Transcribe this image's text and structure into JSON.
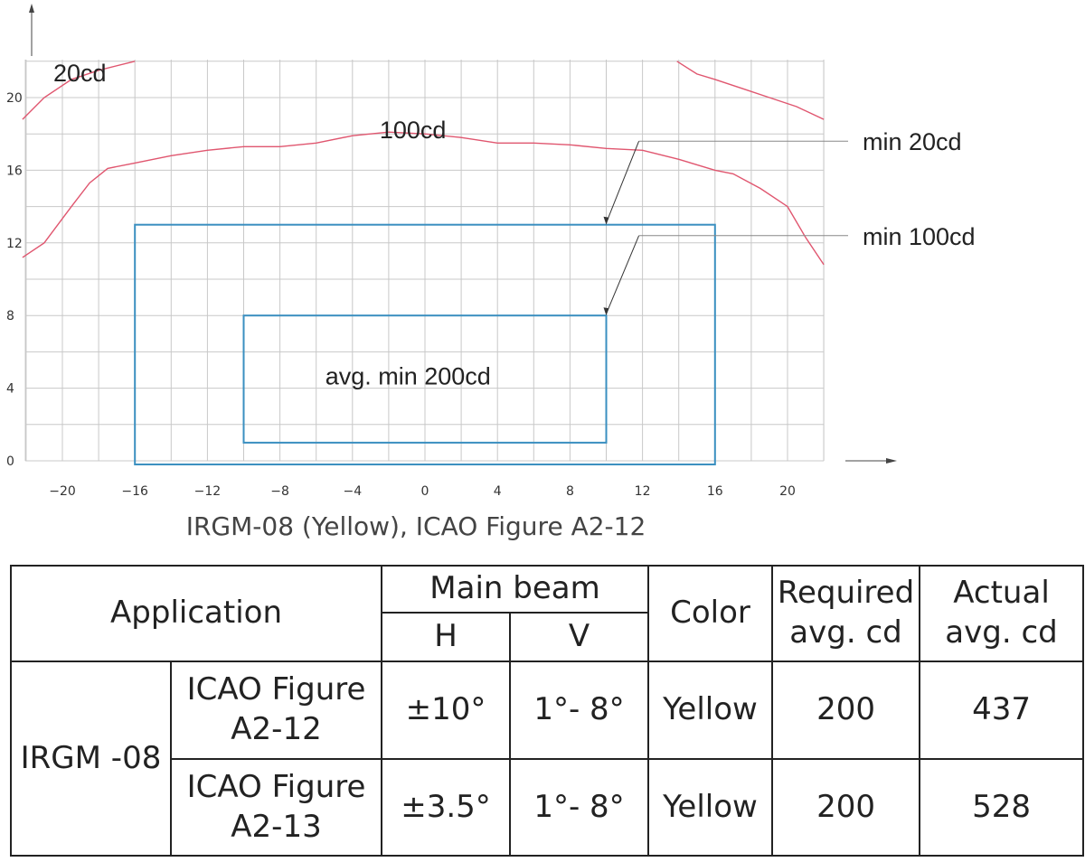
{
  "chart_data": {
    "type": "line",
    "x_ticks": [
      -20,
      -16,
      -12,
      -8,
      -4,
      0,
      4,
      8,
      12,
      16,
      20
    ],
    "y_ticks": [
      0,
      4,
      8,
      12,
      16,
      20
    ],
    "xlim": [
      -22.2,
      22
    ],
    "ylim": [
      0,
      22
    ],
    "grid": true,
    "curves": [
      {
        "label": "20cd",
        "color": "#e0566f",
        "segments": [
          [
            [
              -22.2,
              18.8
            ],
            [
              -21,
              20
            ],
            [
              -19.5,
              21
            ],
            [
              -18,
              21.5
            ],
            [
              -16,
              22
            ]
          ],
          [
            [
              13.9,
              22
            ],
            [
              15,
              21.3
            ],
            [
              16,
              21
            ],
            [
              17.5,
              20.5
            ],
            [
              19,
              20
            ],
            [
              20.5,
              19.5
            ],
            [
              22,
              18.8
            ]
          ]
        ]
      },
      {
        "label": "100cd",
        "color": "#e0566f",
        "segments": [
          [
            [
              -22.2,
              11.2
            ],
            [
              -21,
              12
            ],
            [
              -19.5,
              14
            ],
            [
              -18.5,
              15.3
            ],
            [
              -17.5,
              16.1
            ],
            [
              -16,
              16.4
            ],
            [
              -14,
              16.8
            ],
            [
              -12,
              17.1
            ],
            [
              -10,
              17.3
            ],
            [
              -8,
              17.3
            ],
            [
              -6,
              17.5
            ],
            [
              -4,
              17.9
            ],
            [
              -2,
              18.1
            ],
            [
              0,
              18
            ],
            [
              2,
              17.8
            ],
            [
              4,
              17.5
            ],
            [
              6,
              17.5
            ],
            [
              8,
              17.4
            ],
            [
              10,
              17.2
            ],
            [
              12,
              17.1
            ],
            [
              14,
              16.6
            ],
            [
              16,
              16
            ],
            [
              17,
              15.8
            ],
            [
              18.5,
              15
            ],
            [
              20,
              14
            ],
            [
              21,
              12.3
            ],
            [
              22,
              10.8
            ]
          ]
        ]
      }
    ],
    "rectangles": [
      {
        "x0": -16,
        "x1": 16,
        "y0": -0.2,
        "y1": 13,
        "color": "#3a8fc0"
      },
      {
        "x0": -10,
        "x1": 10,
        "y0": 1,
        "y1": 8,
        "color": "#3a8fc0"
      }
    ],
    "annotations": [
      {
        "text": "20cd",
        "x": -20.5,
        "y": 20.9
      },
      {
        "text": "100cd",
        "x": -2.5,
        "y": 17.75
      },
      {
        "text": "avg. min 200cd",
        "x": -5.5,
        "y": 4.2
      }
    ],
    "callouts": [
      {
        "text": "min 20cd",
        "line_from": [
          10,
          13
        ],
        "line_to": [
          11.8,
          17.6
        ]
      },
      {
        "text": "min 100cd",
        "line_from": [
          10,
          8
        ],
        "line_to": [
          11.8,
          12.4
        ]
      }
    ]
  },
  "caption": "IRGM-08 (Yellow), ICAO Figure A2-12",
  "table": {
    "headers": {
      "application": "Application",
      "main_beam": "Main beam",
      "h": "H",
      "v": "V",
      "color": "Color",
      "required_l1": "Required",
      "required_l2": "avg. cd",
      "actual_l1": "Actual",
      "actual_l2": "avg. cd"
    },
    "product": "IRGM -08",
    "rows": [
      {
        "fig_l1": "ICAO Figure",
        "fig_l2": "A2-12",
        "h": "±10°",
        "v": "1°- 8°",
        "color": "Yellow",
        "required": "200",
        "actual": "437"
      },
      {
        "fig_l1": "ICAO Figure",
        "fig_l2": "A2-13",
        "h": "±3.5°",
        "v": "1°- 8°",
        "color": "Yellow",
        "required": "200",
        "actual": "528"
      }
    ]
  }
}
